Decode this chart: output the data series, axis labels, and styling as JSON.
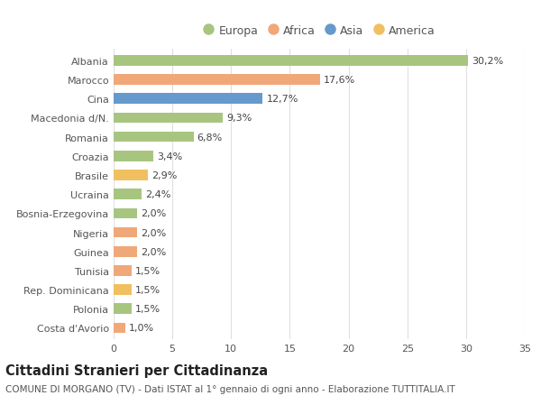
{
  "categories": [
    "Albania",
    "Marocco",
    "Cina",
    "Macedonia d/N.",
    "Romania",
    "Croazia",
    "Brasile",
    "Ucraina",
    "Bosnia-Erzegovina",
    "Nigeria",
    "Guinea",
    "Tunisia",
    "Rep. Dominicana",
    "Polonia",
    "Costa d'Avorio"
  ],
  "values": [
    30.2,
    17.6,
    12.7,
    9.3,
    6.8,
    3.4,
    2.9,
    2.4,
    2.0,
    2.0,
    2.0,
    1.5,
    1.5,
    1.5,
    1.0
  ],
  "labels": [
    "30,2%",
    "17,6%",
    "12,7%",
    "9,3%",
    "6,8%",
    "3,4%",
    "2,9%",
    "2,4%",
    "2,0%",
    "2,0%",
    "2,0%",
    "1,5%",
    "1,5%",
    "1,5%",
    "1,0%"
  ],
  "continents": [
    "Europa",
    "Africa",
    "Asia",
    "Europa",
    "Europa",
    "Europa",
    "America",
    "Europa",
    "Europa",
    "Africa",
    "Africa",
    "Africa",
    "America",
    "Europa",
    "Africa"
  ],
  "colors": {
    "Europa": "#a8c580",
    "Africa": "#f0a878",
    "Asia": "#6699cc",
    "America": "#f0c060"
  },
  "legend_order": [
    "Europa",
    "Africa",
    "Asia",
    "America"
  ],
  "xlim": [
    0,
    35
  ],
  "xticks": [
    0,
    5,
    10,
    15,
    20,
    25,
    30,
    35
  ],
  "title": "Cittadini Stranieri per Cittadinanza",
  "subtitle": "COMUNE DI MORGANO (TV) - Dati ISTAT al 1° gennaio di ogni anno - Elaborazione TUTTITALIA.IT",
  "background_color": "#ffffff",
  "grid_color": "#e0e0e0",
  "bar_height": 0.55,
  "label_fontsize": 8,
  "tick_fontsize": 8,
  "title_fontsize": 10.5,
  "subtitle_fontsize": 7.5
}
